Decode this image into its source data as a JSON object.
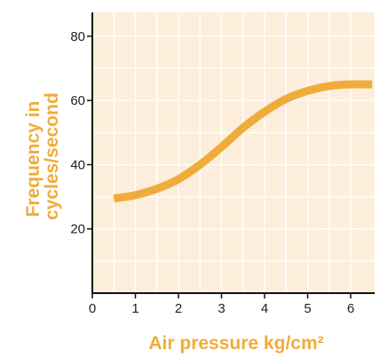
{
  "chart_data": {
    "type": "line",
    "xlabel": "Air pressure kg/cm²",
    "ylabel_lines": [
      "Frequency in",
      "cycles/second"
    ],
    "x_ticks": [
      "0",
      "1",
      "2",
      "3",
      "4",
      "5",
      "6"
    ],
    "y_ticks": [
      "20",
      "40",
      "60",
      "80"
    ],
    "xlim": [
      0,
      6.5
    ],
    "ylim": [
      0,
      90
    ],
    "grid": true,
    "legend": "none",
    "series": [
      {
        "x": [
          0.5,
          1.0,
          1.5,
          2.0,
          2.5,
          3.0,
          3.5,
          4.0,
          4.5,
          5.0,
          5.5,
          6.0,
          6.5
        ],
        "values": [
          29.5,
          30.5,
          32.5,
          35.5,
          40.0,
          45.5,
          51.5,
          56.5,
          60.5,
          63.0,
          64.5,
          65.0,
          65.0
        ]
      }
    ]
  },
  "colors": {
    "accent": "#f0ac3a",
    "plot_background": "#fdeedb",
    "grid": "#ffffff",
    "axis": "#111111"
  }
}
